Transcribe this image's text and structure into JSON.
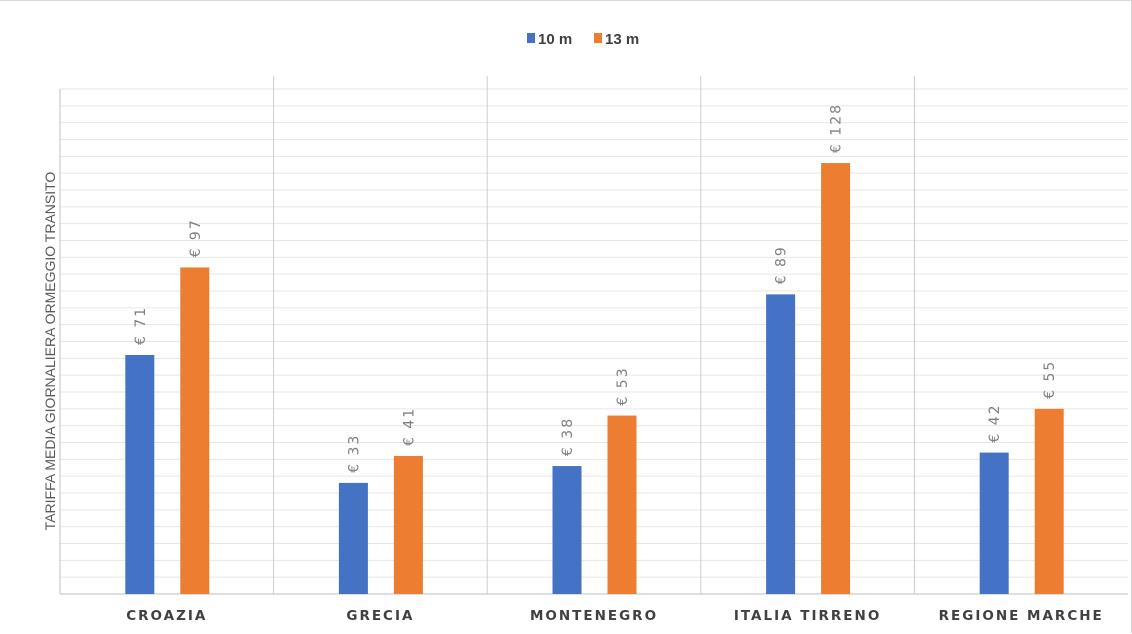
{
  "chart_data": {
    "type": "bar",
    "title": "",
    "xlabel": "",
    "ylabel": "TARIFFA MEDIA GIORNALIERA ORMEGGIO TRANSITO",
    "categories": [
      "CROAZIA",
      "GRECIA",
      "MONTENEGRO",
      "ITALIA TIRRENO",
      "REGIONE MARCHE"
    ],
    "series": [
      {
        "name": "10 m",
        "values": [
          71,
          33,
          38,
          89,
          42
        ],
        "labels": [
          "€ 71",
          "€ 33",
          "€ 38",
          "€ 89",
          "€ 42"
        ],
        "color": "#4472c4"
      },
      {
        "name": "13 m",
        "values": [
          97,
          41,
          53,
          128,
          55
        ],
        "labels": [
          "€ 97",
          "€ 41",
          "€ 53",
          "€ 128",
          "€ 55"
        ],
        "color": "#ed7d31"
      }
    ],
    "ylim": [
      0,
      150
    ],
    "grid": true,
    "legend_position": "top-center",
    "axis_color": "#bfbfbf",
    "grid_color": "#e6e6e6"
  }
}
